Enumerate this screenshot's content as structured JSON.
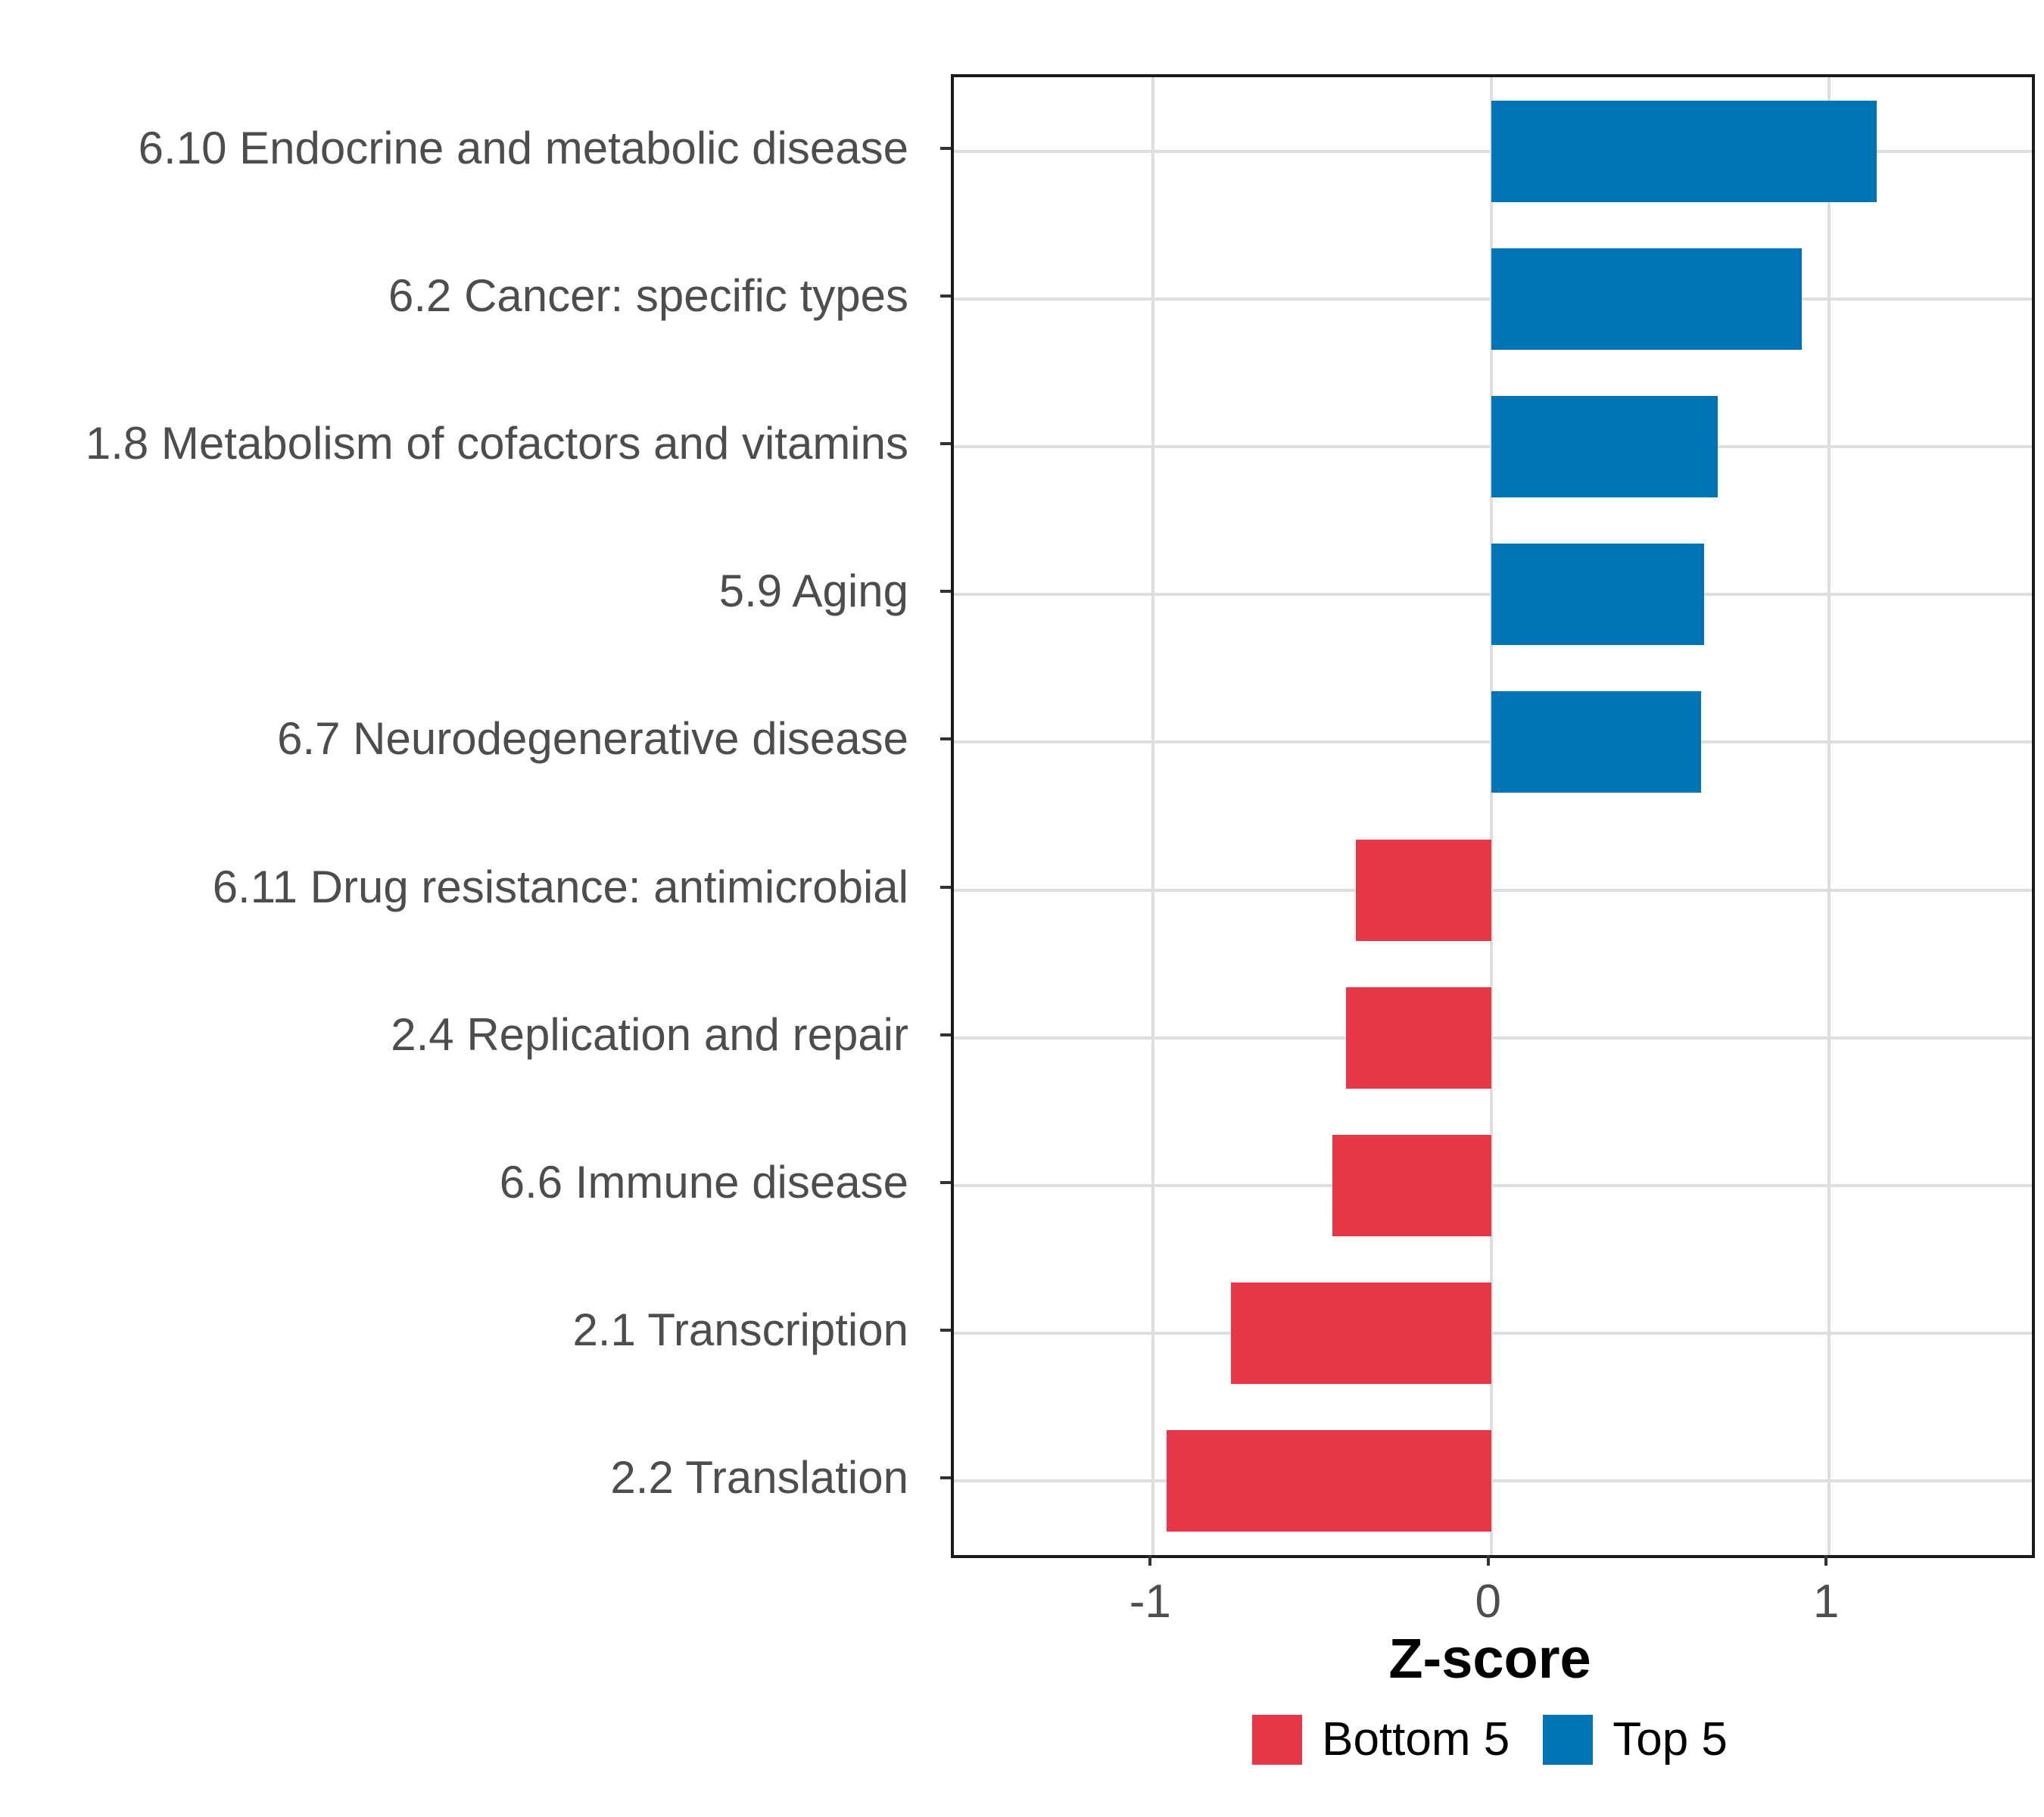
{
  "chart_data": {
    "type": "bar",
    "orientation": "horizontal",
    "title": "",
    "xlabel": "Z-score",
    "ylabel": "",
    "xlim": [
      -1.59,
      1.6
    ],
    "x_tick_values": [
      -1,
      0,
      1
    ],
    "x_tick_labels": [
      "-1",
      "0",
      "1"
    ],
    "grid": "major",
    "legend_position": "bottom",
    "bars": [
      {
        "category": "6.10 Endocrine and metabolic disease",
        "value": 1.14,
        "group": "Top 5"
      },
      {
        "category": "6.2 Cancer: specific types",
        "value": 0.92,
        "group": "Top 5"
      },
      {
        "category": "1.8 Metabolism of cofactors and vitamins",
        "value": 0.67,
        "group": "Top 5"
      },
      {
        "category": "5.9 Aging",
        "value": 0.63,
        "group": "Top 5"
      },
      {
        "category": "6.7 Neurodegenerative disease",
        "value": 0.62,
        "group": "Top 5"
      },
      {
        "category": "6.11 Drug resistance: antimicrobial",
        "value": -0.4,
        "group": "Bottom 5"
      },
      {
        "category": "2.4 Replication and repair",
        "value": -0.43,
        "group": "Bottom 5"
      },
      {
        "category": "6.6 Immune disease",
        "value": -0.47,
        "group": "Bottom 5"
      },
      {
        "category": "2.1 Transcription",
        "value": -0.77,
        "group": "Bottom 5"
      },
      {
        "category": "2.2 Translation",
        "value": -0.96,
        "group": "Bottom 5"
      }
    ],
    "legend": {
      "entries": [
        {
          "label": "Bottom 5",
          "color": "#E63848"
        },
        {
          "label": "Top 5",
          "color": "#0073B4"
        }
      ]
    },
    "colors": {
      "top5_blue": "#0073B4",
      "bottom5_red": "#E63848",
      "gridline": "#DEDEDE",
      "panel_border": "#1B1B1B",
      "axis_text": "#4D4D4D",
      "tick_mark": "#333333"
    }
  }
}
